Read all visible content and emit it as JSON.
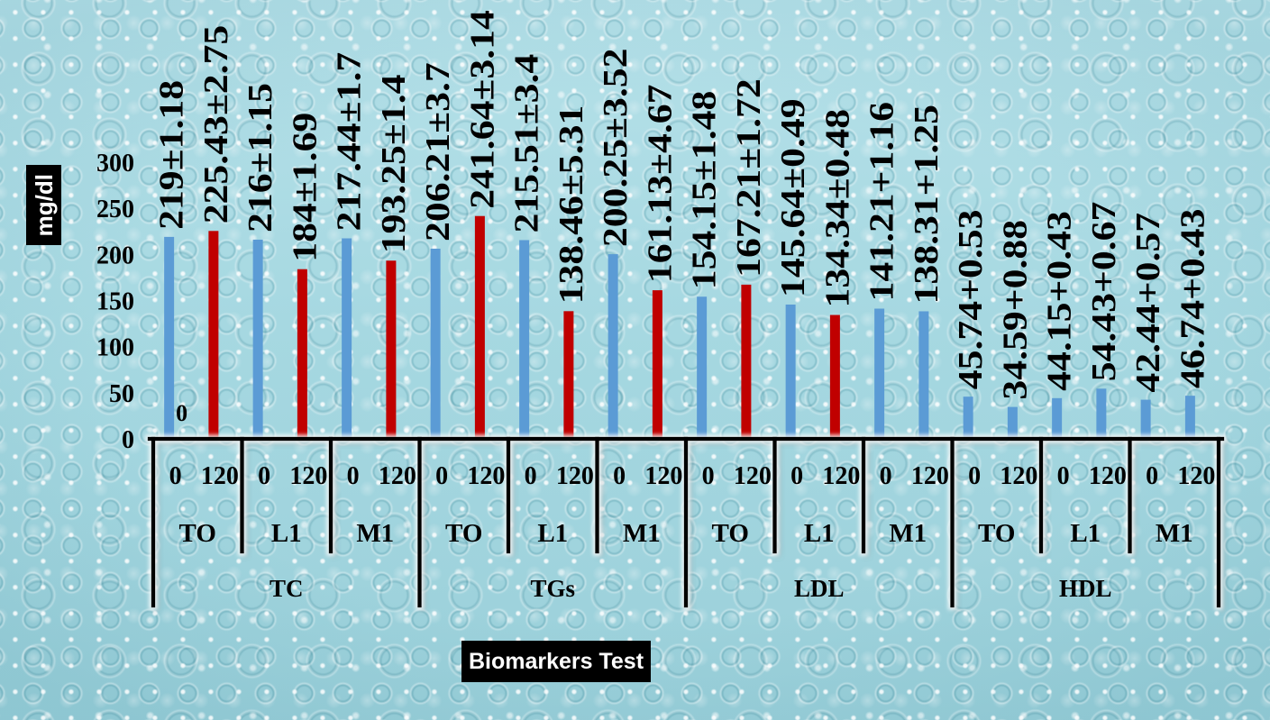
{
  "chart_data": {
    "type": "bar",
    "xlabel": "Biomarkers Test",
    "ylabel": "mg/dl",
    "ylim": [
      0,
      300
    ],
    "yticks": [
      0,
      50,
      100,
      150,
      200,
      250,
      300
    ],
    "grid": false,
    "legend": "none",
    "x_levels": {
      "level1": [
        "0",
        "120",
        "0",
        "120",
        "0",
        "120",
        "0",
        "120",
        "0",
        "120",
        "0",
        "120",
        "0",
        "120",
        "0",
        "120",
        "0",
        "120",
        "0",
        "120",
        "0",
        "120",
        "0",
        "120"
      ],
      "level2": [
        "TO",
        "L1",
        "M1",
        "TO",
        "L1",
        "M1",
        "TO",
        "L1",
        "M1",
        "TO",
        "L1",
        "M1"
      ],
      "level3": [
        "TC",
        "TGs",
        "LDL",
        "HDL"
      ]
    },
    "bars": [
      {
        "value": 219,
        "label": "219±1.18",
        "color": "#5B9BD5"
      },
      {
        "value": 225.43,
        "label": "225.43±2.75",
        "color": "#C00000"
      },
      {
        "value": 216,
        "label": "216±1.15",
        "color": "#5B9BD5"
      },
      {
        "value": 184,
        "label": "184±1.69",
        "color": "#C00000"
      },
      {
        "value": 217.44,
        "label": "217.44±1.7",
        "color": "#5B9BD5"
      },
      {
        "value": 193.25,
        "label": "193.25±1.4",
        "color": "#C00000"
      },
      {
        "value": 206.21,
        "label": "206.21±3.7",
        "color": "#5B9BD5"
      },
      {
        "value": 241.64,
        "label": "241.64±3.14",
        "color": "#C00000"
      },
      {
        "value": 215.51,
        "label": "215.51±3.4",
        "color": "#5B9BD5"
      },
      {
        "value": 138.46,
        "label": "138.46±5.31",
        "color": "#C00000"
      },
      {
        "value": 200.25,
        "label": "200.25±3.52",
        "color": "#5B9BD5"
      },
      {
        "value": 161.13,
        "label": "161.13±4.67",
        "color": "#C00000"
      },
      {
        "value": 154.15,
        "label": "154.15±1.48",
        "color": "#5B9BD5"
      },
      {
        "value": 167.21,
        "label": "167.21±1.72",
        "color": "#C00000"
      },
      {
        "value": 145.64,
        "label": "145.64±0.49",
        "color": "#5B9BD5"
      },
      {
        "value": 134.34,
        "label": "134.34±0.48",
        "color": "#C00000"
      },
      {
        "value": 141.21,
        "label": "141.21+1.16",
        "color": "#5B9BD5"
      },
      {
        "value": 138.31,
        "label": "138.31+1.25",
        "color": "#5B9BD5"
      },
      {
        "value": 45.74,
        "label": "45.74+0.53",
        "color": "#5B9BD5"
      },
      {
        "value": 34.59,
        "label": "34.59+0.88",
        "color": "#5B9BD5"
      },
      {
        "value": 44.15,
        "label": "44.15+0.43",
        "color": "#5B9BD5"
      },
      {
        "value": 54.43,
        "label": "54.43+0.67",
        "color": "#5B9BD5"
      },
      {
        "value": 42.44,
        "label": "42.44+0.57",
        "color": "#5B9BD5"
      },
      {
        "value": 46.74,
        "label": "46.74+0.43",
        "color": "#5B9BD5"
      }
    ],
    "annotations": [
      {
        "text": "0",
        "category_index": 0
      }
    ]
  },
  "style": {
    "background_color": "#A4D6DF",
    "axis_color": "#000000",
    "axis_box_color": "#000000",
    "axis_box_text_color": "#FFFFFF"
  }
}
